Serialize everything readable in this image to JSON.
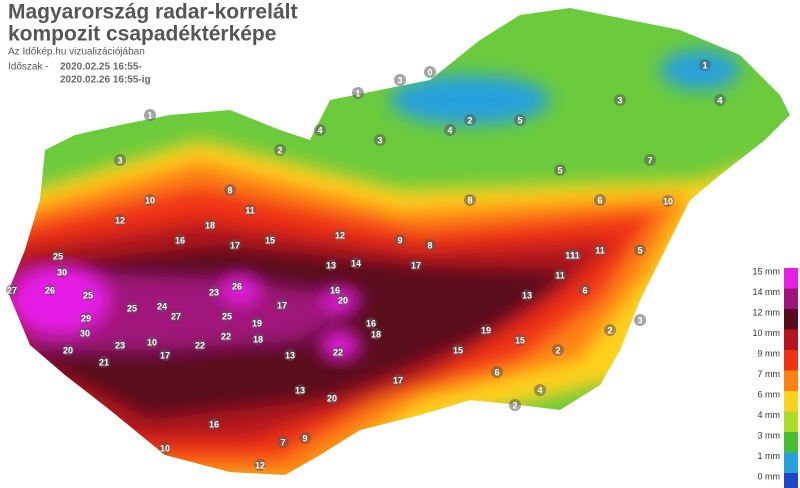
{
  "header": {
    "title_lines": [
      "Magyarország radar-korrelált",
      "kompozit csapadéktérképe"
    ],
    "subtitle": "Az Időkép.hu vizualizációjában",
    "period_label": "Időszak -",
    "period_from": "2020.02.25 16:55-",
    "period_to": "2020.02.26 16:55-ig"
  },
  "legend": {
    "items": [
      {
        "label": "15 mm",
        "color": "#e61ee6"
      },
      {
        "label": "14 mm",
        "color": "#a0147a"
      },
      {
        "label": "12 mm",
        "color": "#5a0a1e"
      },
      {
        "label": "10 mm",
        "color": "#b4141e"
      },
      {
        "label": "9 mm",
        "color": "#f03214"
      },
      {
        "label": "7 mm",
        "color": "#ff8214"
      },
      {
        "label": "6 mm",
        "color": "#ffd21e"
      },
      {
        "label": "4 mm",
        "color": "#aadc28"
      },
      {
        "label": "3 mm",
        "color": "#46be32"
      },
      {
        "label": "1 mm",
        "color": "#28a0dc"
      },
      {
        "label": "0 mm",
        "color": "#1e46c8"
      }
    ]
  },
  "stations": [
    1,
    0,
    3,
    2,
    1,
    3,
    1,
    2,
    4,
    3,
    4,
    5,
    5,
    7,
    6,
    4,
    3,
    8,
    10,
    12,
    11,
    15,
    18,
    17,
    16,
    12,
    25,
    30,
    27,
    26,
    25,
    29,
    30,
    20,
    23,
    10,
    21,
    17,
    22,
    24,
    25,
    27,
    23,
    26,
    22,
    17,
    25,
    19,
    18,
    20,
    22,
    16,
    14,
    13,
    17,
    13,
    11,
    15,
    11,
    13,
    9,
    8,
    10,
    11,
    18,
    19,
    16,
    20,
    13,
    17,
    15,
    10,
    12,
    16,
    7,
    9,
    6,
    4,
    2,
    3,
    2,
    5,
    2,
    6,
    8,
    11
  ]
}
